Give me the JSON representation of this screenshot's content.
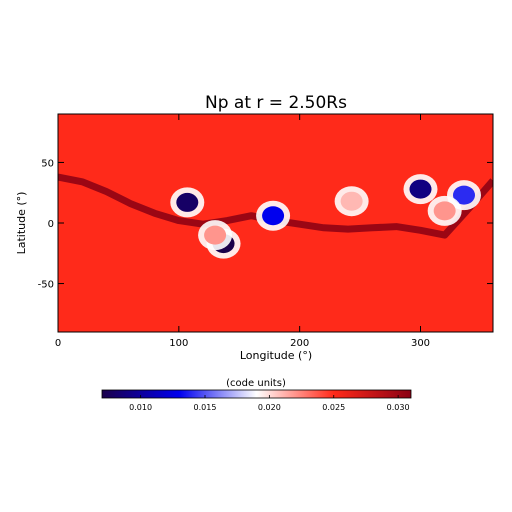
{
  "chart_data": {
    "type": "heatmap",
    "title": "Np at r = 2.50Rs",
    "xlabel": "Longitude (°)",
    "ylabel": "Latitude (°)",
    "xlim": [
      0,
      360
    ],
    "ylim": [
      -90,
      90
    ],
    "x_ticks": [
      0,
      100,
      200,
      300
    ],
    "y_ticks": [
      -50,
      0,
      50
    ],
    "grid": false,
    "background_value": 0.025,
    "colorbar": {
      "label": "(code units)",
      "range": [
        0.007,
        0.031
      ],
      "ticks": [
        "0.010",
        "0.015",
        "0.020",
        "0.025",
        "0.030"
      ],
      "tick_values": [
        0.01,
        0.015,
        0.02,
        0.025,
        0.03
      ],
      "colors": [
        "#1a004a",
        "#0000ee",
        "#ffffff",
        "#ff2a1a",
        "#8a0014"
      ]
    },
    "features": [
      {
        "kind": "low",
        "lon": 107,
        "lat": 17,
        "value": 0.008
      },
      {
        "kind": "low",
        "lon": 178,
        "lat": 6,
        "value": 0.013
      },
      {
        "kind": "low",
        "lon": 137,
        "lat": -17,
        "value": 0.007
      },
      {
        "kind": "low",
        "lon": 300,
        "lat": 28,
        "value": 0.009
      },
      {
        "kind": "low",
        "lon": 336,
        "lat": 23,
        "value": 0.014
      },
      {
        "kind": "low",
        "lon": 243,
        "lat": 18,
        "value": 0.021
      },
      {
        "kind": "low",
        "lon": 320,
        "lat": 10,
        "value": 0.022
      },
      {
        "kind": "low",
        "lon": 130,
        "lat": -10,
        "value": 0.022
      },
      {
        "kind": "current_sheet",
        "lon": [
          0,
          20,
          40,
          60,
          80,
          100,
          120,
          140,
          160,
          180,
          200,
          220,
          240,
          260,
          280,
          300,
          320,
          340,
          360
        ],
        "lat": [
          38,
          34,
          26,
          16,
          8,
          2,
          -1,
          2,
          6,
          2,
          -1,
          -4,
          -5,
          -4,
          -3,
          -6,
          -10,
          12,
          35
        ],
        "value": 0.031
      }
    ]
  }
}
